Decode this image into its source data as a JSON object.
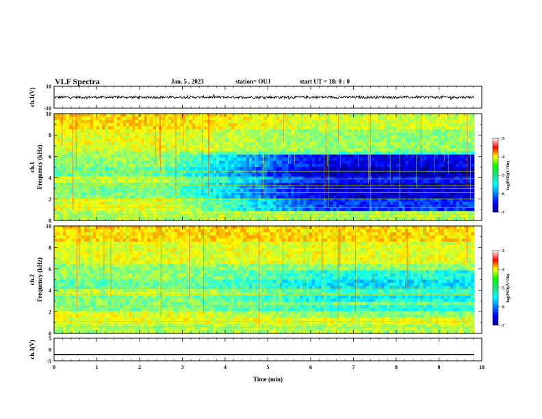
{
  "header": {
    "title": "VLF Spectra",
    "date": "Jan. 5 , 2023",
    "station": "station= OUJ",
    "start": "start UT = 18: 0 : 0"
  },
  "chart_data": [
    {
      "type": "line",
      "name": "ch1-waveform",
      "ylabel": "ch.1(V)",
      "ylim": [
        -10,
        10
      ],
      "yticks": [
        "10",
        "-10"
      ],
      "xlim": [
        0,
        10
      ],
      "description_values": "noise waveform near 0 V, amplitude about +/-2 V, spanning 0 to ~9.8 min"
    },
    {
      "type": "heatmap",
      "name": "ch1-spectrogram",
      "ylabel": "ch.1\nFrequency (kHz)",
      "ylabel_line1": "ch.1",
      "ylabel_line2": "Frequency (kHz)",
      "ylim": [
        0,
        10
      ],
      "yticks": [
        "0",
        "2",
        "4",
        "6",
        "8",
        "10"
      ],
      "xlim": [
        0,
        10
      ],
      "data_xmax": 9.82,
      "colorbar": {
        "label": "log(PSD)(V²/Hz)",
        "range": [
          -7,
          -3
        ],
        "ticks": [
          "-3",
          "-4",
          "-5",
          "-6",
          "-7"
        ],
        "colormap": "jet"
      }
    },
    {
      "type": "heatmap",
      "name": "ch2-spectrogram",
      "ylabel_line1": "ch.2",
      "ylabel_line2": "Frequency (kHz)",
      "ylim": [
        0,
        10
      ],
      "yticks": [
        "0",
        "2",
        "4",
        "6",
        "8",
        "10"
      ],
      "xlim": [
        0,
        10
      ],
      "data_xmax": 9.82,
      "colorbar": {
        "label": "log(PSD)(V²/Hz)",
        "range": [
          -7,
          -3
        ],
        "ticks": [
          "-3",
          "-4",
          "-5",
          "-6",
          "-7"
        ],
        "colormap": "jet"
      }
    },
    {
      "type": "line",
      "name": "ch3-trace",
      "ylabel": "ch.3(V)",
      "ylim": [
        -5,
        5
      ],
      "yticks": [
        "5",
        "0",
        "-5"
      ],
      "x": [
        0,
        9.82
      ],
      "y": [
        -2.2,
        -2.2
      ],
      "xlabel": "Time (min)",
      "xlim": [
        0,
        10
      ],
      "xticks": [
        "0",
        "1",
        "2",
        "3",
        "4",
        "5",
        "6",
        "7",
        "8",
        "9",
        "10"
      ]
    }
  ]
}
